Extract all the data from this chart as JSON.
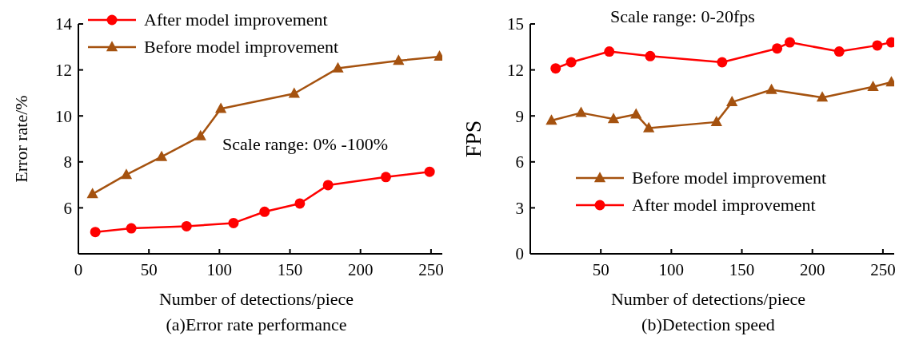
{
  "chart_data": [
    {
      "type": "line",
      "title": "(a)Error rate performance",
      "xlabel": "Number of detections/piece",
      "ylabel": "Error rate/%",
      "annotations": [
        "Scale range: 0% -100%"
      ],
      "legend": "top left",
      "grid": false,
      "line_style": "solid",
      "xlim": [
        0,
        258
      ],
      "xticks": [
        0,
        50,
        100,
        150,
        200,
        250
      ],
      "ylim": [
        4,
        14
      ],
      "yticks": [
        {
          "value": 4,
          "label": null
        },
        6,
        8,
        10,
        12,
        14
      ],
      "series": [
        {
          "name": "After model improvement",
          "color": "#ff0000",
          "marker": "circle",
          "x": [
            12,
            37.5,
            76.7,
            110,
            132,
            157,
            177,
            218,
            249
          ],
          "values": [
            4.95,
            5.11,
            5.2,
            5.34,
            5.83,
            6.19,
            6.99,
            7.34,
            7.57
          ]
        },
        {
          "name": "Before model improvement",
          "color": "#a5520f",
          "marker": "triangle",
          "x": [
            10,
            34,
            59,
            86.6,
            101,
            153,
            184,
            227,
            256
          ],
          "values": [
            6.6,
            7.44,
            8.22,
            9.12,
            10.31,
            10.97,
            12.07,
            12.4,
            12.58
          ]
        }
      ]
    },
    {
      "type": "line",
      "title": "(b)Detection speed",
      "xlabel": "Number of detections/piece",
      "ylabel": "FPS",
      "annotations": [
        "Scale range: 0-20fps"
      ],
      "legend": "bottom left",
      "grid": false,
      "line_style": "solid",
      "xlim": [
        0,
        258
      ],
      "xticks": [
        50,
        100,
        150,
        200,
        250
      ],
      "ylim": [
        0,
        15
      ],
      "yticks": [
        0,
        3,
        6,
        9,
        12,
        15
      ],
      "series": [
        {
          "name": "Before model improvement",
          "color": "#a5520f",
          "marker": "triangle",
          "x": [
            15,
            36,
            59,
            75,
            84,
            132,
            143,
            171,
            207,
            243,
            256
          ],
          "values": [
            8.7,
            9.2,
            8.8,
            9.1,
            8.2,
            8.6,
            9.9,
            10.7,
            10.2,
            10.9,
            11.2
          ]
        },
        {
          "name": "After model improvement",
          "color": "#ff0000",
          "marker": "circle",
          "x": [
            18,
            29,
            56,
            85,
            136,
            175,
            184,
            219,
            246,
            256
          ],
          "values": [
            12.1,
            12.5,
            13.2,
            12.9,
            12.5,
            13.4,
            13.8,
            13.2,
            13.6,
            13.8
          ]
        }
      ]
    }
  ]
}
